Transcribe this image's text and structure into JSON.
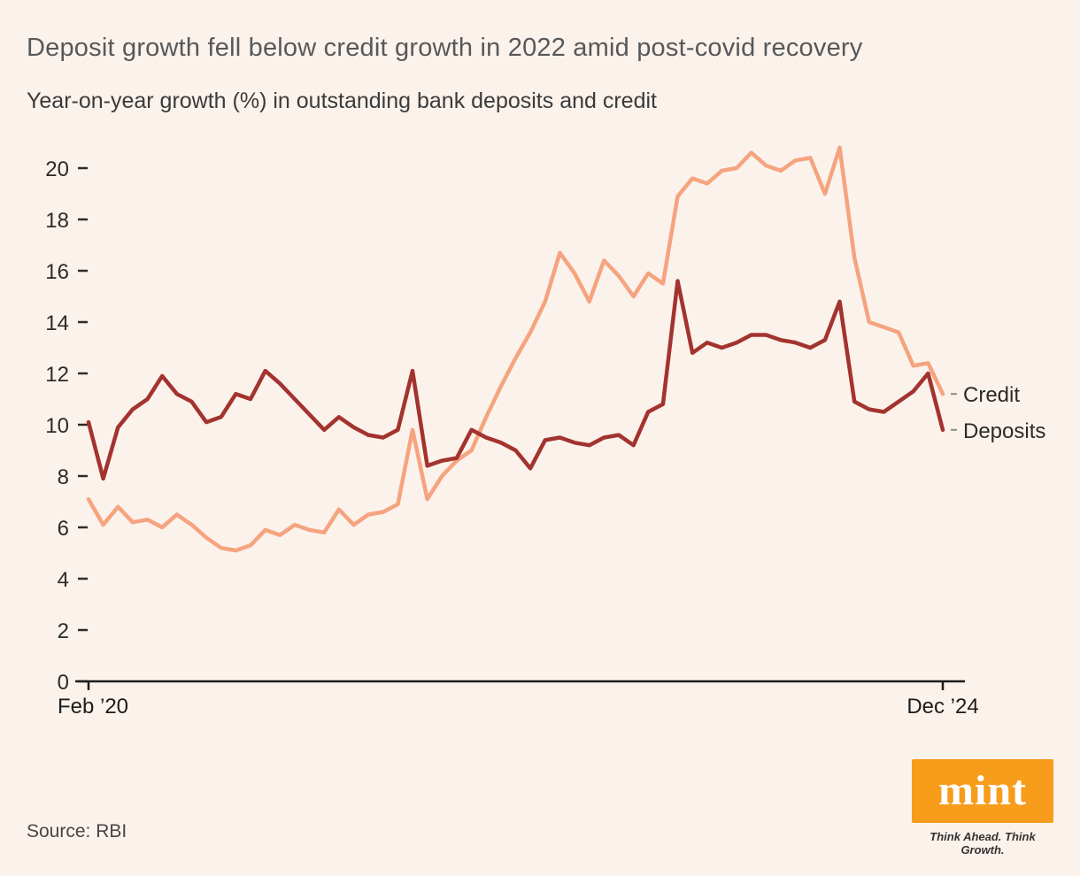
{
  "page": {
    "background": "#fcf2ec",
    "title": "Deposit growth fell below credit growth in 2022 amid post-covid recovery",
    "subtitle": "Year-on-year growth (%) in outstanding bank deposits and credit",
    "source": "Source: RBI"
  },
  "branding": {
    "logo_text": "mint",
    "tagline": "Think Ahead. Think Growth.",
    "logo_color": "#f89c1c"
  },
  "chart_data": {
    "type": "line",
    "title": "Deposit growth fell below credit growth in 2022 amid post-covid recovery",
    "subtitle": "Year-on-year growth (%) in outstanding bank deposits and credit",
    "source": "RBI",
    "x_start_label": "Feb ’20",
    "x_end_label": "Dec ’24",
    "xlabel": "",
    "ylabel": "Year-on-year growth (%)",
    "ylim": [
      0,
      20
    ],
    "y_ticks": [
      0,
      2,
      4,
      6,
      8,
      10,
      12,
      14,
      16,
      18,
      20
    ],
    "grid": false,
    "legend_position": "line-end-labels",
    "x": [
      "Feb ’20",
      "Mar ’20",
      "Apr ’20",
      "May ’20",
      "Jun ’20",
      "Jul ’20",
      "Aug ’20",
      "Sep ’20",
      "Oct ’20",
      "Nov ’20",
      "Dec ’20",
      "Jan ’21",
      "Feb ’21",
      "Mar ’21",
      "Apr ’21",
      "May ’21",
      "Jun ’21",
      "Jul ’21",
      "Aug ’21",
      "Sep ’21",
      "Oct ’21",
      "Nov ’21",
      "Dec ’21",
      "Jan ’22",
      "Feb ’22",
      "Mar ’22",
      "Apr ’22",
      "May ’22",
      "Jun ’22",
      "Jul ’22",
      "Aug ’22",
      "Sep ’22",
      "Oct ’22",
      "Nov ’22",
      "Dec ’22",
      "Jan ’23",
      "Feb ’23",
      "Mar ’23",
      "Apr ’23",
      "May ’23",
      "Jun ’23",
      "Jul ’23",
      "Aug ’23",
      "Sep ’23",
      "Oct ’23",
      "Nov ’23",
      "Dec ’23",
      "Jan ’24",
      "Feb ’24",
      "Mar ’24",
      "Apr ’24",
      "May ’24",
      "Jun ’24",
      "Jul ’24",
      "Aug ’24",
      "Sep ’24",
      "Oct ’24",
      "Nov ’24",
      "Dec ’24"
    ],
    "series": [
      {
        "name": "Credit",
        "color": "#f5a47f",
        "values": [
          7.1,
          6.1,
          6.8,
          6.2,
          6.3,
          6.0,
          6.5,
          6.1,
          5.6,
          5.2,
          5.1,
          5.3,
          5.9,
          5.7,
          6.1,
          5.9,
          5.8,
          6.7,
          6.1,
          6.5,
          6.6,
          6.9,
          9.8,
          7.1,
          8.0,
          8.6,
          9.0,
          10.3,
          11.5,
          12.6,
          13.6,
          14.8,
          16.7,
          15.9,
          14.8,
          16.4,
          15.8,
          15.0,
          15.9,
          15.5,
          18.9,
          19.6,
          19.4,
          19.9,
          20.0,
          20.6,
          20.1,
          19.9,
          20.3,
          20.4,
          19.0,
          20.8,
          16.5,
          14.0,
          13.8,
          13.6,
          12.3,
          12.4,
          11.2
        ]
      },
      {
        "name": "Deposits",
        "color": "#a3332e",
        "values": [
          10.1,
          7.9,
          9.9,
          10.6,
          11.0,
          11.9,
          11.2,
          10.9,
          10.1,
          10.3,
          11.2,
          11.0,
          12.1,
          11.6,
          11.0,
          10.4,
          9.8,
          10.3,
          9.9,
          9.6,
          9.5,
          9.8,
          12.1,
          8.4,
          8.6,
          8.7,
          9.8,
          9.5,
          9.3,
          9.0,
          8.3,
          9.4,
          9.5,
          9.3,
          9.2,
          9.5,
          9.6,
          9.2,
          10.5,
          10.8,
          15.6,
          12.8,
          13.2,
          13.0,
          13.2,
          13.5,
          13.5,
          13.3,
          13.2,
          13.0,
          13.3,
          14.8,
          10.9,
          10.6,
          10.5,
          10.9,
          11.3,
          12.0,
          9.8
        ]
      }
    ]
  }
}
